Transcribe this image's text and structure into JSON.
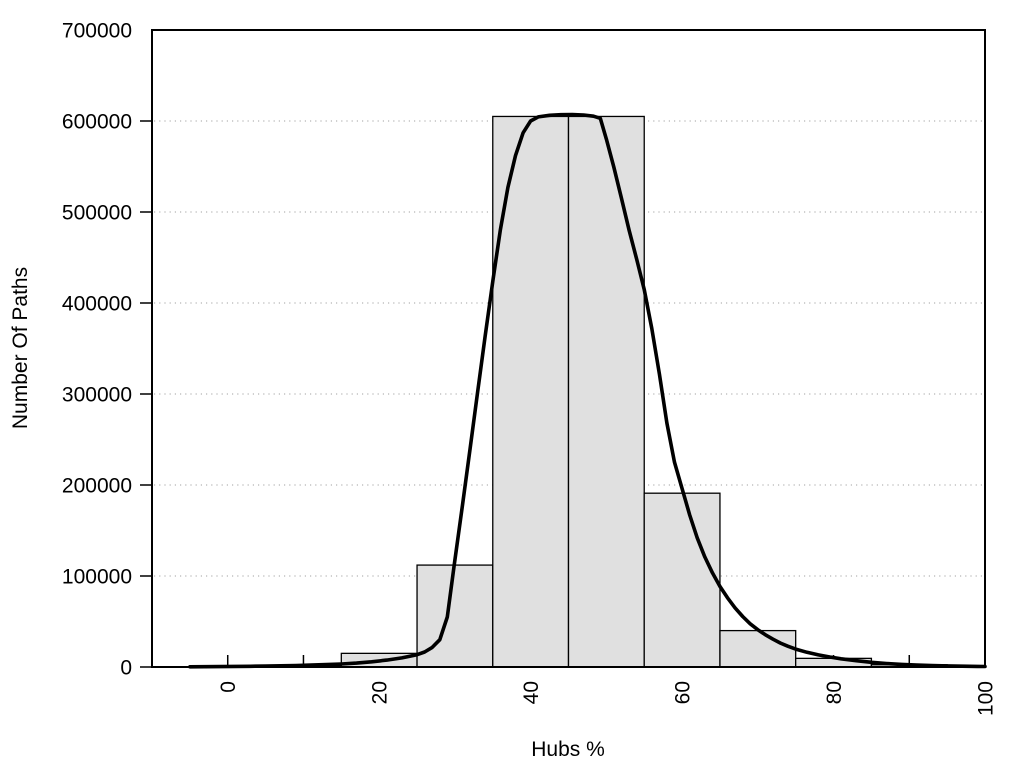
{
  "figure": {
    "background_color": "#ffffff",
    "text_color": "#000000"
  },
  "chart_data": {
    "type": "bar",
    "subtype": "histogram_with_density_curve",
    "title": "",
    "xlabel": "Hubs %",
    "ylabel": "Number Of Paths",
    "xlim": [
      -10,
      100
    ],
    "ylim": [
      0,
      700000
    ],
    "legend": "none",
    "grid": {
      "horizontal": "dotted",
      "vertical": "off",
      "color": "#b5b5b5"
    },
    "x_axis": {
      "tick_values": [
        0,
        10,
        20,
        30,
        40,
        50,
        60,
        70,
        80,
        90,
        100
      ],
      "labeled_ticks": [
        {
          "value": 0,
          "label": "0"
        },
        {
          "value": 20,
          "label": "20"
        },
        {
          "value": 40,
          "label": "40"
        },
        {
          "value": 60,
          "label": "60"
        },
        {
          "value": 80,
          "label": "80"
        },
        {
          "value": 100,
          "label": "100"
        }
      ],
      "label_rotation_deg": -90,
      "ticks_direction": "inward"
    },
    "y_axis": {
      "tick_values": [
        0,
        100000,
        200000,
        300000,
        400000,
        500000,
        600000
      ],
      "tick_labels": [
        "0",
        "100000",
        "200000",
        "300000",
        "400000",
        "500000",
        "600000"
      ],
      "top_label": {
        "value": 700000,
        "label": "700000"
      },
      "ticks_direction": "outward"
    },
    "histogram": {
      "bin_edges": [
        5,
        15,
        25,
        35,
        45,
        55,
        65,
        75,
        85,
        95
      ],
      "counts": [
        1500,
        15000,
        112000,
        605000,
        605000,
        191000,
        40000,
        9500,
        2500
      ],
      "fill_color": "#e0e0e0",
      "stroke_color": "#000000"
    },
    "density_curve": {
      "color": "#000000",
      "points": [
        [
          -5,
          200
        ],
        [
          -3,
          320
        ],
        [
          -1,
          450
        ],
        [
          1,
          620
        ],
        [
          3,
          820
        ],
        [
          5,
          1050
        ],
        [
          7,
          1350
        ],
        [
          9,
          1700
        ],
        [
          11,
          2100
        ],
        [
          13,
          2600
        ],
        [
          15,
          3300
        ],
        [
          17,
          4300
        ],
        [
          19,
          5700
        ],
        [
          21,
          7600
        ],
        [
          23,
          10000
        ],
        [
          25,
          13500
        ],
        [
          26,
          16500
        ],
        [
          27,
          21500
        ],
        [
          28,
          30000
        ],
        [
          29,
          55000
        ],
        [
          29.9,
          112000
        ],
        [
          31,
          178000
        ],
        [
          32,
          240000
        ],
        [
          33,
          302000
        ],
        [
          34,
          364000
        ],
        [
          35,
          424000
        ],
        [
          36,
          480000
        ],
        [
          37,
          527000
        ],
        [
          38,
          562000
        ],
        [
          39,
          587000
        ],
        [
          40,
          600000
        ],
        [
          41,
          604500
        ],
        [
          42.5,
          606300
        ],
        [
          44,
          606900
        ],
        [
          45.5,
          607000
        ],
        [
          47,
          606600
        ],
        [
          48.3,
          605300
        ],
        [
          49.2,
          603000
        ],
        [
          50,
          580000
        ],
        [
          51,
          549000
        ],
        [
          52,
          515000
        ],
        [
          53,
          480000
        ],
        [
          54,
          448000
        ],
        [
          55,
          415000
        ],
        [
          56,
          372000
        ],
        [
          57,
          322000
        ],
        [
          58,
          268000
        ],
        [
          59,
          225000
        ],
        [
          60,
          196000
        ],
        [
          61,
          167000
        ],
        [
          62,
          142000
        ],
        [
          63,
          121000
        ],
        [
          64,
          103500
        ],
        [
          65,
          88500
        ],
        [
          66,
          76000
        ],
        [
          67,
          65000
        ],
        [
          68,
          55500
        ],
        [
          69,
          47500
        ],
        [
          70,
          41000
        ],
        [
          71,
          35400
        ],
        [
          72,
          30500
        ],
        [
          73,
          26300
        ],
        [
          74,
          22700
        ],
        [
          75,
          19700
        ],
        [
          76.5,
          16200
        ],
        [
          78,
          13300
        ],
        [
          79.5,
          11000
        ],
        [
          81,
          9000
        ],
        [
          83,
          6900
        ],
        [
          85,
          5200
        ],
        [
          87,
          3900
        ],
        [
          89,
          2900
        ],
        [
          91,
          2150
        ],
        [
          93,
          1600
        ],
        [
          95,
          1180
        ],
        [
          97,
          870
        ],
        [
          99,
          640
        ],
        [
          100,
          550
        ]
      ]
    },
    "plot_border_color": "#000000"
  }
}
